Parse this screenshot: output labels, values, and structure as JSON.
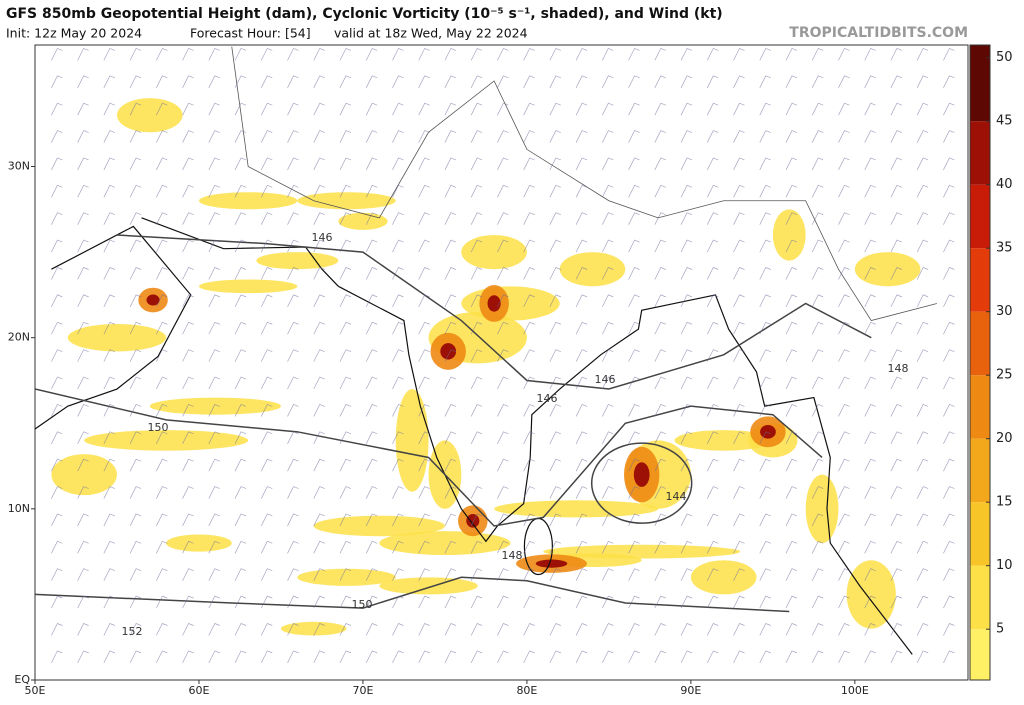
{
  "header": {
    "title": "GFS 850mb Geopotential Height (dam), Cyclonic Vorticity (10⁻⁵ s⁻¹, shaded), and Wind (kt)",
    "init": "Init: 12z May 20 2024",
    "forecast_hour": "Forecast Hour: [54]",
    "valid": "valid at 18z Wed, May 22 2024",
    "brand": "TROPICALTIDBITS.COM"
  },
  "map": {
    "lonlim": [
      50,
      106.9
    ],
    "latlim": [
      0,
      37.1
    ],
    "lonticks": [
      {
        "value": 50,
        "label": "50E"
      },
      {
        "value": 60,
        "label": "60E"
      },
      {
        "value": 70,
        "label": "70E"
      },
      {
        "value": 80,
        "label": "80E"
      },
      {
        "value": 90,
        "label": "90E"
      },
      {
        "value": 100,
        "label": "100E"
      }
    ],
    "latticks": [
      {
        "value": 0,
        "label": "EQ"
      },
      {
        "value": 10,
        "label": "10N"
      },
      {
        "value": 20,
        "label": "20N"
      },
      {
        "value": 30,
        "label": "30N"
      }
    ],
    "contour_labels": [
      "146",
      "150",
      "146",
      "146",
      "144",
      "148",
      "150",
      "152",
      "148"
    ]
  },
  "colorbar": {
    "range": [
      1,
      51
    ],
    "ticks": [
      5,
      10,
      15,
      20,
      25,
      30,
      35,
      40,
      45,
      50
    ],
    "colors": [
      "#fff066",
      "#fde047",
      "#f8c528",
      "#f3a81c",
      "#ee8a14",
      "#e8620e",
      "#e33b0a",
      "#c81c08",
      "#9c1006",
      "#5e0804"
    ]
  }
}
